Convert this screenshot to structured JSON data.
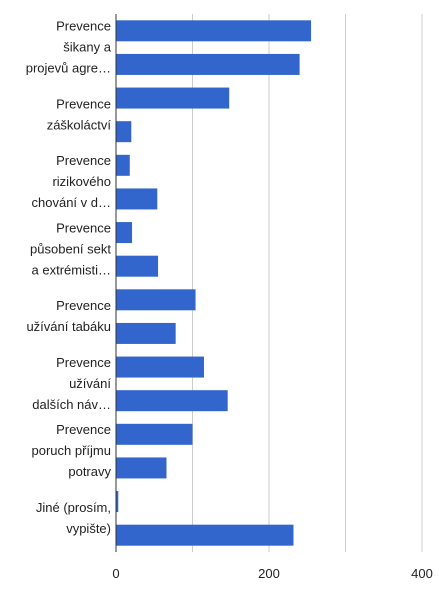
{
  "chart_data": {
    "type": "bar",
    "orientation": "horizontal",
    "categories": [
      "Prevence šikany a projevů agre…",
      "",
      "Prevence záškoláctví",
      "",
      "Prevence rizikového chování v d…",
      "",
      "Prevence působení sekt a extrémisti…",
      "",
      "Prevence užívání tabáku",
      "",
      "Prevence užívání dalších náv…",
      "",
      "Prevence poruch příjmu potravy",
      "",
      "Jiné (prosím, vypište)",
      ""
    ],
    "label_lines": [
      [
        "Prevence",
        "šikany a",
        "projevů agre…"
      ],
      [],
      [
        "Prevence",
        "záškoláctví"
      ],
      [],
      [
        "Prevence",
        "rizikového",
        "chování v d…"
      ],
      [],
      [
        "Prevence",
        "působení sekt",
        "a extrémisti…"
      ],
      [],
      [
        "Prevence",
        "užívání tabáku"
      ],
      [],
      [
        "Prevence",
        "užívání",
        "dalších náv…"
      ],
      [],
      [
        "Prevence",
        "poruch příjmu",
        "potravy"
      ],
      [],
      [
        "Jiné (prosím,",
        "vypište)"
      ],
      []
    ],
    "values": [
      255,
      240,
      148,
      20,
      18,
      54,
      21,
      55,
      104,
      78,
      115,
      146,
      100,
      66,
      3,
      232
    ],
    "xlim": [
      0,
      400
    ],
    "xticks": [
      "0",
      "200",
      "400"
    ],
    "bar_color": "#3366cc",
    "grid": true,
    "legend": "none",
    "title": "",
    "xlabel": "",
    "ylabel": ""
  }
}
